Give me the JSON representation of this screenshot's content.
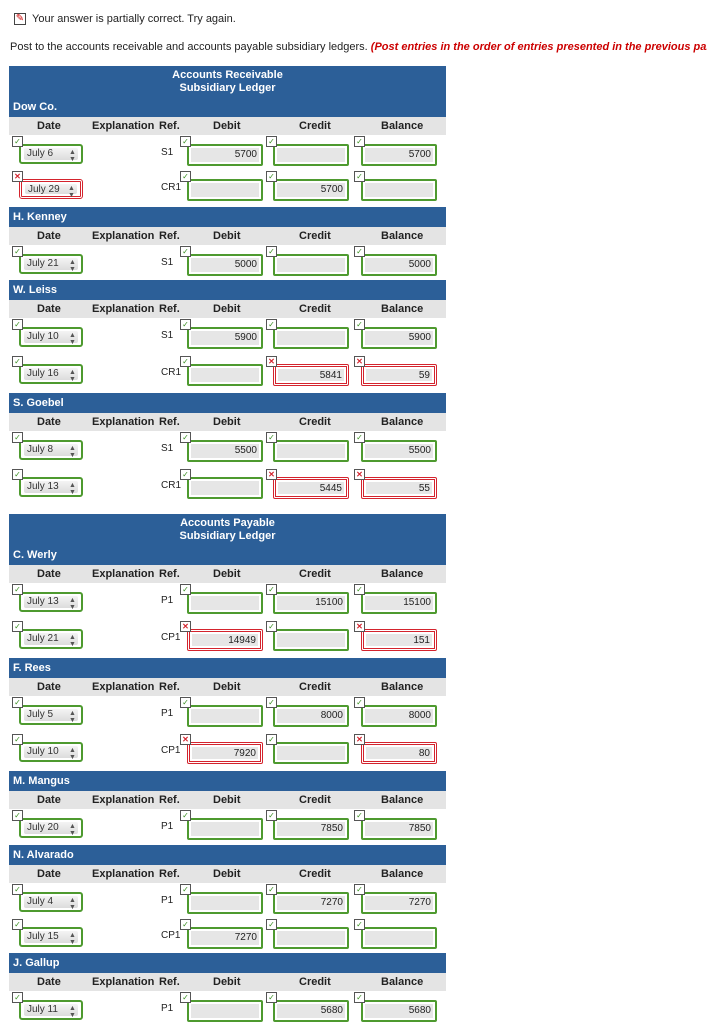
{
  "status": {
    "text": "Your answer is partially correct.  Try again.",
    "icon": "pencil-icon"
  },
  "instruction": {
    "text": "Post to the accounts receivable and accounts payable subsidiary ledgers.",
    "note": "(Post entries in the order of entries presented in the previous part.)"
  },
  "columns": {
    "date": "Date",
    "explanation": "Explanation",
    "ref": "Ref.",
    "debit": "Debit",
    "credit": "Credit",
    "balance": "Balance"
  },
  "ar_title": [
    "Accounts Receivable",
    "Subsidiary Ledger"
  ],
  "ap_title": [
    "Accounts Payable",
    "Subsidiary Ledger"
  ],
  "colors": {
    "header_blue": "#2c5f98",
    "correct_green": "#4e9a2f",
    "incorrect_red": "#d4232d"
  },
  "accounts": [
    {
      "name": "Dow Co.",
      "rows": [
        {
          "date": "July 6",
          "ref": "S1",
          "debit": "5700",
          "credit": "",
          "balance": "5700",
          "ok": [
            true,
            true,
            true,
            true
          ]
        },
        {
          "date": "July 29",
          "ref": "CR1",
          "debit": "",
          "credit": "5700",
          "balance": "",
          "ok": [
            false,
            true,
            true,
            true
          ]
        }
      ]
    },
    {
      "name": "H. Kenney",
      "rows": [
        {
          "date": "July 21",
          "ref": "S1",
          "debit": "5000",
          "credit": "",
          "balance": "5000",
          "ok": [
            true,
            true,
            true,
            true
          ]
        }
      ]
    },
    {
      "name": "W. Leiss",
      "rows": [
        {
          "date": "July 10",
          "ref": "S1",
          "debit": "5900",
          "credit": "",
          "balance": "5900",
          "ok": [
            true,
            true,
            true,
            true
          ]
        },
        {
          "date": "July 16",
          "ref": "CR1",
          "debit": "",
          "credit": "5841",
          "balance": "59",
          "ok": [
            true,
            true,
            false,
            false
          ]
        }
      ]
    },
    {
      "name": "S. Goebel",
      "rows": [
        {
          "date": "July 8",
          "ref": "S1",
          "debit": "5500",
          "credit": "",
          "balance": "5500",
          "ok": [
            true,
            true,
            true,
            true
          ]
        },
        {
          "date": "July 13",
          "ref": "CR1",
          "debit": "",
          "credit": "5445",
          "balance": "55",
          "ok": [
            true,
            true,
            false,
            false
          ]
        }
      ]
    },
    {
      "name": "C. Werly",
      "rows": [
        {
          "date": "July 13",
          "ref": "P1",
          "debit": "",
          "credit": "15100",
          "balance": "15100",
          "ok": [
            true,
            true,
            true,
            true
          ]
        },
        {
          "date": "July 21",
          "ref": "CP1",
          "debit": "14949",
          "credit": "",
          "balance": "151",
          "ok": [
            true,
            false,
            true,
            false
          ]
        }
      ]
    },
    {
      "name": "F. Rees",
      "rows": [
        {
          "date": "July 5",
          "ref": "P1",
          "debit": "",
          "credit": "8000",
          "balance": "8000",
          "ok": [
            true,
            true,
            true,
            true
          ]
        },
        {
          "date": "July 10",
          "ref": "CP1",
          "debit": "7920",
          "credit": "",
          "balance": "80",
          "ok": [
            true,
            false,
            true,
            false
          ]
        }
      ]
    },
    {
      "name": "M. Mangus",
      "rows": [
        {
          "date": "July 20",
          "ref": "P1",
          "debit": "",
          "credit": "7850",
          "balance": "7850",
          "ok": [
            true,
            true,
            true,
            true
          ]
        }
      ]
    },
    {
      "name": "N. Alvarado",
      "rows": [
        {
          "date": "July 4",
          "ref": "P1",
          "debit": "",
          "credit": "7270",
          "balance": "7270",
          "ok": [
            true,
            true,
            true,
            true
          ]
        },
        {
          "date": "July 15",
          "ref": "CP1",
          "debit": "7270",
          "credit": "",
          "balance": "",
          "ok": [
            true,
            true,
            true,
            true
          ]
        }
      ]
    },
    {
      "name": "J. Gallup",
      "rows": [
        {
          "date": "July 11",
          "ref": "P1",
          "debit": "",
          "credit": "5680",
          "balance": "5680",
          "ok": [
            true,
            true,
            true,
            true
          ]
        }
      ]
    }
  ]
}
